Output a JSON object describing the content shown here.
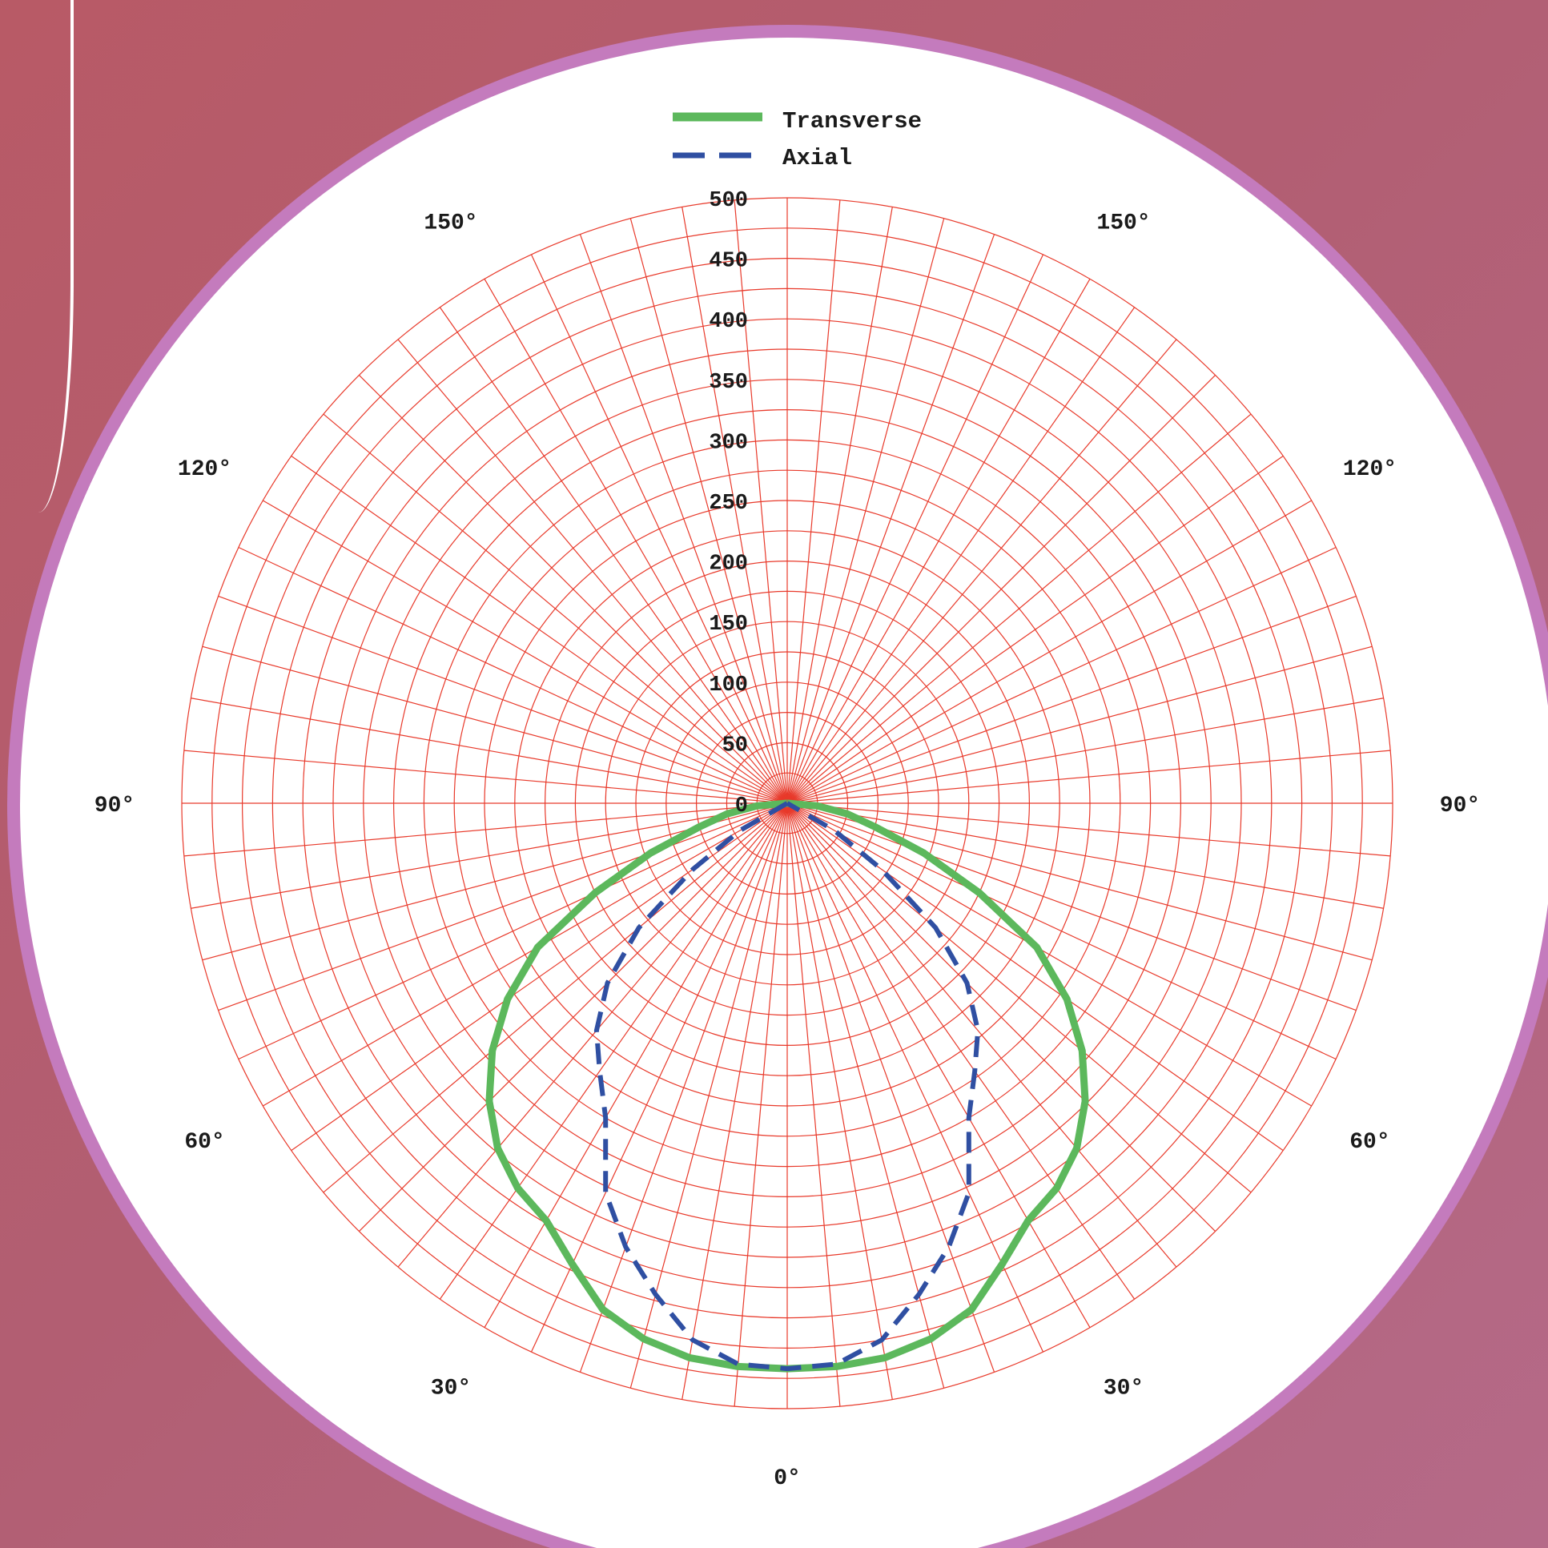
{
  "colors": {
    "background": "#b6607a",
    "plot_background": "#ffffff",
    "ring_border": "#c47bbd",
    "grid": "#e8392a",
    "transverse": "#5cb85c",
    "axial": "#2f4fa2"
  },
  "chart_data": {
    "type": "polar-line",
    "title": "",
    "r_range": [
      0,
      500
    ],
    "r_ticks": [
      "0",
      "50",
      "100",
      "150",
      "200",
      "250",
      "300",
      "350",
      "400",
      "450",
      "500"
    ],
    "angle_labels": [
      {
        "text": "0°",
        "angle": 0
      },
      {
        "text": "30°",
        "angle": -30
      },
      {
        "text": "30°",
        "angle": 30
      },
      {
        "text": "60°",
        "angle": -60
      },
      {
        "text": "60°",
        "angle": 60
      },
      {
        "text": "90°",
        "angle": -90
      },
      {
        "text": "90°",
        "angle": 90
      },
      {
        "text": "120°",
        "angle": -120
      },
      {
        "text": "120°",
        "angle": 120
      },
      {
        "text": "150°",
        "angle": -150
      },
      {
        "text": "150°",
        "angle": 150
      }
    ],
    "grid": true,
    "legend_position": "top",
    "angles": [
      -90,
      -85,
      -80,
      -75,
      -70,
      -65,
      -60,
      -55,
      -50,
      -45,
      -40,
      -35,
      -30,
      -25,
      -20,
      -15,
      -10,
      -5,
      0,
      5,
      10,
      15,
      20,
      25,
      30,
      35,
      40,
      45,
      50,
      55,
      60,
      65,
      70,
      75,
      80,
      85,
      90
    ],
    "series": [
      {
        "name": "Transverse",
        "style": "solid",
        "values": [
          0,
          25,
          50,
          75,
          120,
          175,
          238,
          282,
          318,
          348,
          372,
          388,
          398,
          420,
          445,
          458,
          465,
          467,
          467,
          467,
          465,
          458,
          445,
          420,
          398,
          388,
          372,
          348,
          318,
          282,
          238,
          175,
          120,
          75,
          50,
          25,
          0
        ]
      },
      {
        "name": "Axial",
        "style": "dashed",
        "values": [
          0,
          0,
          0,
          0,
          0,
          0,
          45,
          95,
          160,
          210,
          245,
          270,
          300,
          355,
          390,
          420,
          450,
          465,
          467,
          465,
          450,
          420,
          390,
          355,
          300,
          270,
          245,
          210,
          160,
          95,
          45,
          0,
          0,
          0,
          0,
          0,
          0
        ]
      }
    ]
  }
}
